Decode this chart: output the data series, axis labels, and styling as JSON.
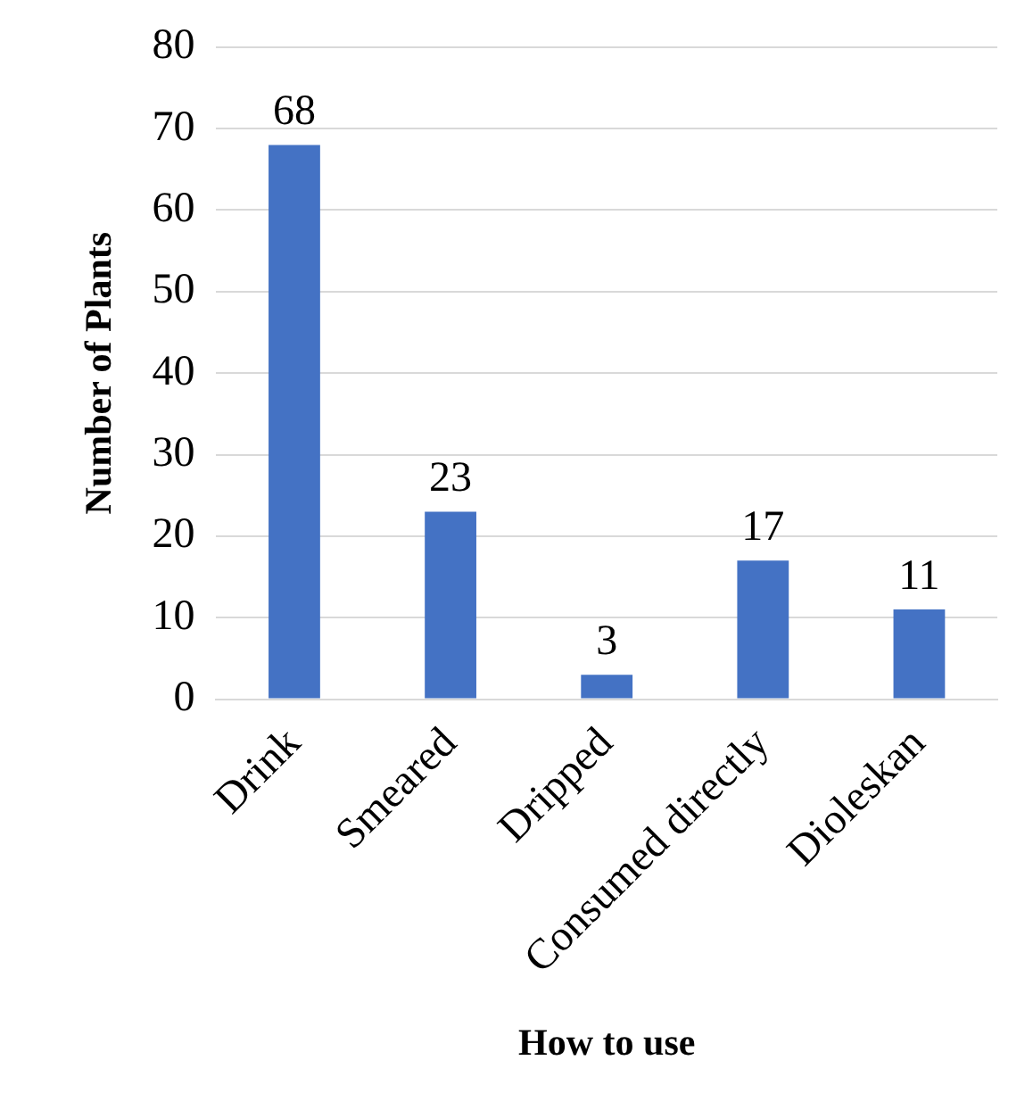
{
  "chart_data": {
    "type": "bar",
    "xlabel": "How to use",
    "ylabel": "Number of Plants",
    "categories": [
      "Drink",
      "Smeared",
      "Dripped",
      "Consumed directly",
      "Dioleskan"
    ],
    "values": [
      68,
      23,
      3,
      17,
      11
    ],
    "color": "#4472c4",
    "ylim": [
      0,
      80
    ],
    "yticks": [
      0,
      10,
      20,
      30,
      40,
      50,
      60,
      70,
      80
    ],
    "grid": "y",
    "data_labels": true,
    "legend": false
  }
}
